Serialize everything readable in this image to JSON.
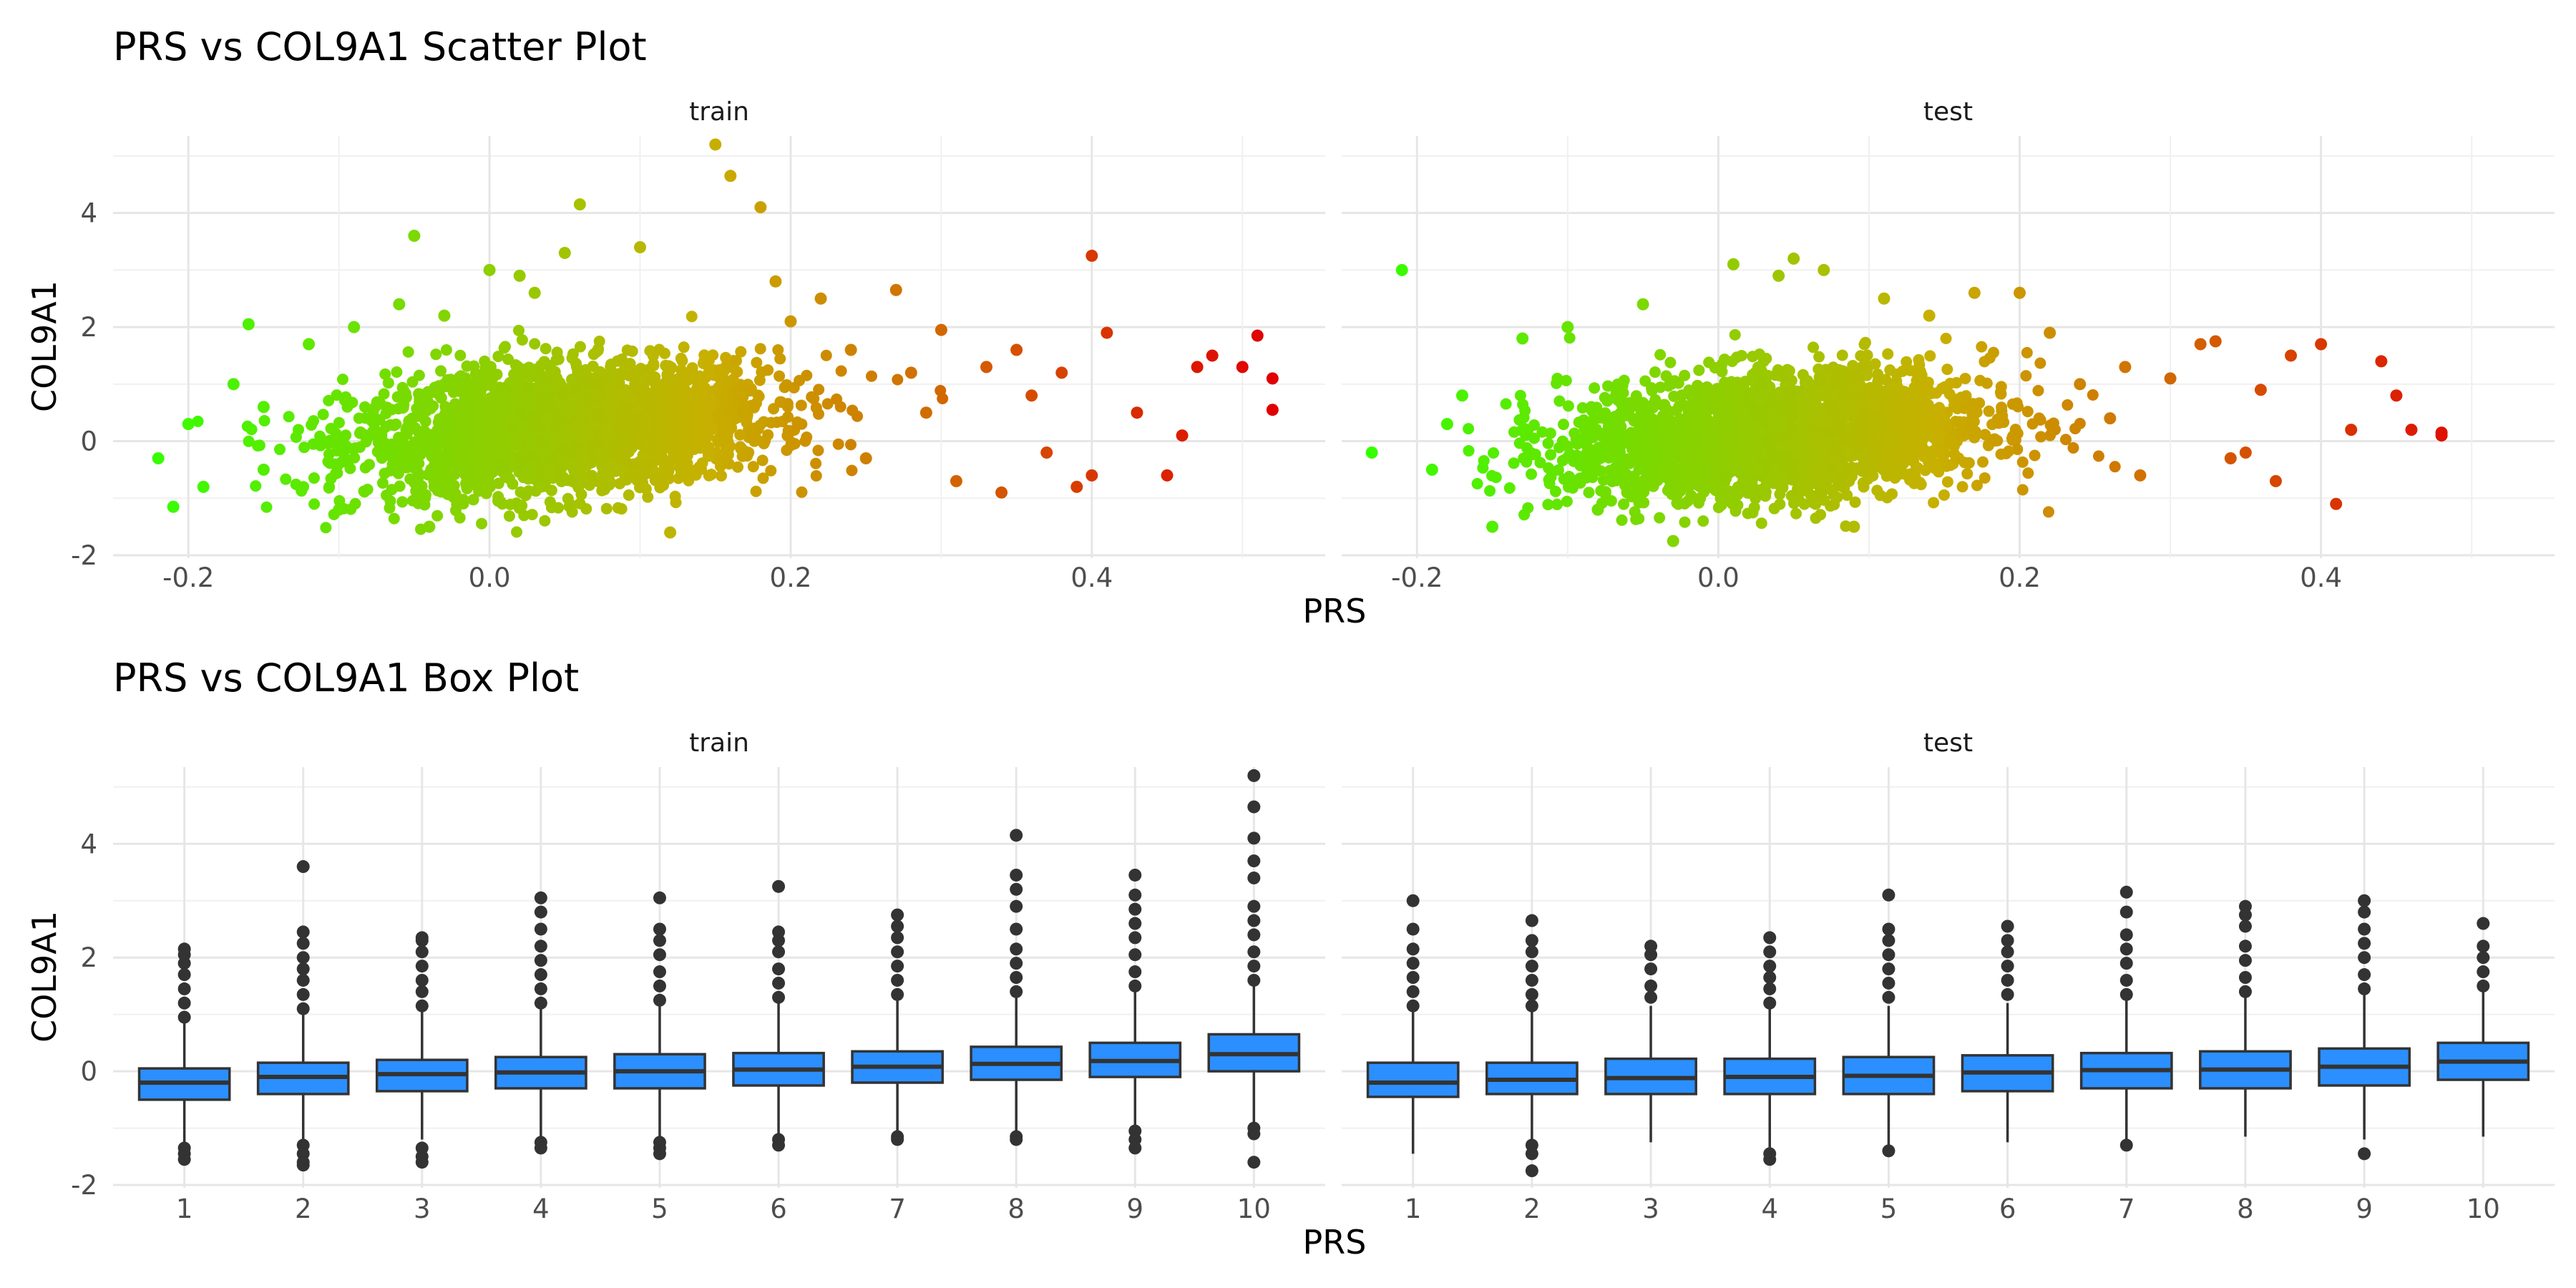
{
  "figure": {
    "scatter_title": "PRS vs COL9A1 Scatter Plot",
    "box_title": "PRS vs COL9A1 Box Plot",
    "x_title": "PRS",
    "y_title": "COL9A1"
  },
  "chart_data": [
    {
      "type": "scatter",
      "title": "PRS vs COL9A1 Scatter Plot",
      "xlabel": "PRS",
      "ylabel": "COL9A1",
      "facets": [
        "train",
        "test"
      ],
      "xlim": [
        -0.25,
        0.555
      ],
      "ylim": [
        -2.05,
        5.35
      ],
      "x_ticks": [
        -0.2,
        0.0,
        0.2,
        0.4
      ],
      "x_tick_labels": [
        "-0.2",
        "0.0",
        "0.2",
        "0.4"
      ],
      "y_ticks": [
        -2,
        0,
        2,
        4
      ],
      "y_tick_labels": [
        "-2",
        "0",
        "2",
        "4"
      ],
      "color_scale": {
        "low": "#33ff00",
        "mid": "#c8b000",
        "high": "#e00000",
        "low_value": -0.23,
        "high_value": 0.52
      },
      "grid": true,
      "series": [
        {
          "name": "train",
          "x": [
            -0.22,
            -0.21,
            -0.2,
            -0.19,
            -0.17,
            -0.16,
            -0.15,
            -0.15,
            -0.12,
            -0.1,
            -0.09,
            -0.06,
            -0.05,
            -0.04,
            -0.03,
            0.0,
            0.02,
            0.03,
            0.05,
            0.06,
            0.1,
            0.12,
            0.15,
            0.16,
            0.18,
            0.19,
            0.2,
            0.22,
            0.24,
            0.25,
            0.27,
            0.28,
            0.3,
            0.31,
            0.33,
            0.35,
            0.37,
            0.38,
            0.4,
            0.4,
            0.41,
            0.43,
            0.45,
            0.47,
            0.48,
            0.5,
            0.51,
            0.52,
            0.52,
            0.46,
            0.34,
            0.36,
            0.29,
            0.39
          ],
          "y": [
            -0.3,
            -1.15,
            0.3,
            -0.8,
            1.0,
            2.05,
            -0.5,
            0.6,
            1.7,
            -1.2,
            2.0,
            2.4,
            3.6,
            -1.5,
            2.2,
            3.0,
            2.9,
            2.6,
            3.3,
            4.15,
            3.4,
            -1.6,
            5.2,
            4.65,
            4.1,
            2.8,
            2.1,
            2.5,
            1.6,
            -0.3,
            2.65,
            1.2,
            1.95,
            -0.7,
            1.3,
            1.6,
            -0.2,
            1.2,
            3.25,
            -0.6,
            1.9,
            0.5,
            -0.6,
            1.3,
            1.5,
            1.3,
            1.85,
            1.1,
            0.55,
            0.1,
            -0.9,
            0.8,
            0.5,
            -0.8
          ],
          "cloud": {
            "center": [
              0.05,
              0.2
            ],
            "x_range": [
              -0.2,
              0.32
            ],
            "y_range": [
              -1.6,
              3.0
            ],
            "slope": 2.0
          }
        },
        {
          "name": "test",
          "x": [
            -0.21,
            -0.23,
            -0.19,
            -0.18,
            -0.17,
            -0.15,
            -0.13,
            -0.1,
            -0.08,
            -0.05,
            -0.03,
            0.01,
            0.04,
            0.05,
            0.07,
            0.09,
            0.11,
            0.14,
            0.17,
            0.2,
            0.22,
            0.24,
            0.27,
            0.28,
            0.3,
            0.32,
            0.33,
            0.35,
            0.36,
            0.37,
            0.38,
            0.4,
            0.41,
            0.42,
            0.44,
            0.45,
            0.46,
            0.48,
            0.48,
            0.34,
            0.26
          ],
          "y": [
            3.0,
            -0.2,
            -0.5,
            0.3,
            0.8,
            -1.5,
            1.8,
            2.0,
            -1.2,
            2.4,
            -1.75,
            3.1,
            2.9,
            3.2,
            3.0,
            -1.5,
            2.5,
            2.2,
            2.6,
            2.6,
            1.9,
            1.0,
            1.3,
            -0.6,
            1.1,
            1.7,
            1.75,
            -0.2,
            0.9,
            -0.7,
            1.5,
            1.7,
            -1.1,
            0.2,
            1.4,
            0.8,
            0.2,
            0.15,
            0.1,
            -0.3,
            0.4
          ],
          "cloud": {
            "center": [
              0.04,
              0.1
            ],
            "x_range": [
              -0.17,
              0.28
            ],
            "y_range": [
              -1.5,
              2.4
            ],
            "slope": 1.8
          }
        }
      ]
    },
    {
      "type": "box",
      "title": "PRS vs COL9A1 Box Plot",
      "xlabel": "PRS",
      "ylabel": "COL9A1",
      "facets": [
        "train",
        "test"
      ],
      "categories": [
        "1",
        "2",
        "3",
        "4",
        "5",
        "6",
        "7",
        "8",
        "9",
        "10"
      ],
      "ylim": [
        -2.05,
        5.35
      ],
      "y_ticks": [
        -2,
        0,
        2,
        4
      ],
      "y_tick_labels": [
        "-2",
        "0",
        "2",
        "4"
      ],
      "fill": "#2b8fff",
      "grid": true,
      "series": [
        {
          "name": "train",
          "boxes": [
            {
              "q1": -0.5,
              "median": -0.2,
              "q3": 0.05,
              "lower": -1.25,
              "upper": 0.85,
              "outliers": [
                -1.35,
                -1.45,
                -1.55,
                0.95,
                1.2,
                1.45,
                1.7,
                1.9,
                2.05,
                2.15
              ]
            },
            {
              "q1": -0.4,
              "median": -0.1,
              "q3": 0.15,
              "lower": -1.2,
              "upper": 1.0,
              "outliers": [
                -1.3,
                -1.45,
                -1.6,
                -1.65,
                1.1,
                1.35,
                1.6,
                1.8,
                2.0,
                2.25,
                2.45,
                3.6
              ]
            },
            {
              "q1": -0.35,
              "median": -0.05,
              "q3": 0.2,
              "lower": -1.2,
              "upper": 1.05,
              "outliers": [
                -1.35,
                -1.5,
                -1.6,
                1.15,
                1.4,
                1.6,
                1.85,
                2.1,
                2.3,
                2.35
              ]
            },
            {
              "q1": -0.3,
              "median": -0.02,
              "q3": 0.25,
              "lower": -1.15,
              "upper": 1.1,
              "outliers": [
                -1.25,
                -1.35,
                1.2,
                1.45,
                1.7,
                1.95,
                2.2,
                2.5,
                2.8,
                3.05
              ]
            },
            {
              "q1": -0.3,
              "median": 0.0,
              "q3": 0.3,
              "lower": -1.15,
              "upper": 1.15,
              "outliers": [
                -1.25,
                -1.35,
                -1.45,
                1.25,
                1.5,
                1.75,
                2.05,
                2.3,
                2.5,
                3.05
              ]
            },
            {
              "q1": -0.25,
              "median": 0.03,
              "q3": 0.32,
              "lower": -1.1,
              "upper": 1.2,
              "outliers": [
                -1.2,
                -1.3,
                1.3,
                1.55,
                1.8,
                2.1,
                2.3,
                2.45,
                3.25
              ]
            },
            {
              "q1": -0.2,
              "median": 0.08,
              "q3": 0.35,
              "lower": -1.05,
              "upper": 1.25,
              "outliers": [
                -1.15,
                -1.2,
                1.35,
                1.6,
                1.85,
                2.1,
                2.35,
                2.55,
                2.75
              ]
            },
            {
              "q1": -0.15,
              "median": 0.13,
              "q3": 0.43,
              "lower": -1.05,
              "upper": 1.3,
              "outliers": [
                -1.15,
                -1.2,
                1.4,
                1.65,
                1.9,
                2.15,
                2.5,
                2.9,
                3.2,
                3.45,
                4.15
              ]
            },
            {
              "q1": -0.1,
              "median": 0.18,
              "q3": 0.5,
              "lower": -0.95,
              "upper": 1.4,
              "outliers": [
                -1.05,
                -1.2,
                -1.35,
                1.5,
                1.75,
                2.05,
                2.35,
                2.6,
                2.85,
                3.1,
                3.45
              ]
            },
            {
              "q1": 0.0,
              "median": 0.3,
              "q3": 0.65,
              "lower": -0.9,
              "upper": 1.5,
              "outliers": [
                -1.0,
                -1.1,
                -1.6,
                1.6,
                1.85,
                2.1,
                2.4,
                2.65,
                2.9,
                3.4,
                3.7,
                4.1,
                4.65,
                5.2
              ]
            }
          ]
        },
        {
          "name": "test",
          "boxes": [
            {
              "q1": -0.45,
              "median": -0.2,
              "q3": 0.15,
              "lower": -1.45,
              "upper": 1.05,
              "outliers": [
                1.15,
                1.4,
                1.65,
                1.9,
                2.15,
                2.5,
                3.0
              ]
            },
            {
              "q1": -0.4,
              "median": -0.15,
              "q3": 0.15,
              "lower": -1.2,
              "upper": 1.05,
              "outliers": [
                -1.3,
                -1.45,
                -1.75,
                1.15,
                1.35,
                1.6,
                1.85,
                2.1,
                2.3,
                2.65
              ]
            },
            {
              "q1": -0.4,
              "median": -0.12,
              "q3": 0.22,
              "lower": -1.25,
              "upper": 1.15,
              "outliers": [
                1.3,
                1.5,
                1.8,
                2.05,
                2.2
              ]
            },
            {
              "q1": -0.4,
              "median": -0.1,
              "q3": 0.22,
              "lower": -1.35,
              "upper": 1.1,
              "outliers": [
                -1.45,
                -1.55,
                1.2,
                1.45,
                1.65,
                1.85,
                2.1,
                2.35
              ]
            },
            {
              "q1": -0.4,
              "median": -0.08,
              "q3": 0.25,
              "lower": -1.3,
              "upper": 1.15,
              "outliers": [
                -1.4,
                1.3,
                1.55,
                1.8,
                2.05,
                2.3,
                2.5,
                3.1
              ]
            },
            {
              "q1": -0.35,
              "median": -0.02,
              "q3": 0.28,
              "lower": -1.25,
              "upper": 1.2,
              "outliers": [
                1.35,
                1.6,
                1.85,
                2.1,
                2.3,
                2.55
              ]
            },
            {
              "q1": -0.3,
              "median": 0.02,
              "q3": 0.32,
              "lower": -1.2,
              "upper": 1.25,
              "outliers": [
                -1.3,
                1.35,
                1.6,
                1.9,
                2.15,
                2.4,
                2.8,
                3.15
              ]
            },
            {
              "q1": -0.3,
              "median": 0.03,
              "q3": 0.35,
              "lower": -1.15,
              "upper": 1.3,
              "outliers": [
                1.4,
                1.65,
                1.95,
                2.2,
                2.55,
                2.75,
                2.9
              ]
            },
            {
              "q1": -0.25,
              "median": 0.08,
              "q3": 0.4,
              "lower": -1.2,
              "upper": 1.35,
              "outliers": [
                -1.45,
                1.45,
                1.7,
                2.0,
                2.25,
                2.5,
                2.8,
                3.0
              ]
            },
            {
              "q1": -0.15,
              "median": 0.17,
              "q3": 0.5,
              "lower": -1.15,
              "upper": 1.4,
              "outliers": [
                1.5,
                1.75,
                2.0,
                2.2,
                2.6
              ]
            }
          ]
        }
      ]
    }
  ]
}
